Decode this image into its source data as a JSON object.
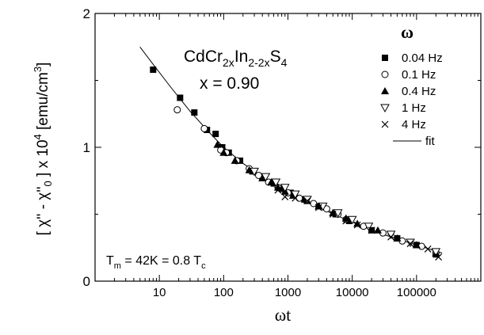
{
  "chart_data": {
    "type": "scatter",
    "title": "",
    "xlabel": "ωt",
    "ylabel": {
      "part1": "[ χ'' - χ''",
      "sub1": "0",
      "part2": " ] x 10",
      "sup1": "4",
      "part3": " [emu/cm",
      "sup2": "3",
      "part4": "]"
    },
    "x_scale": "log",
    "xlim": [
      1,
      1000000
    ],
    "ylim": [
      0,
      2
    ],
    "x_tick_labels": [
      "10",
      "100",
      "1000",
      "10000",
      "100000"
    ],
    "y_tick_labels": [
      "0",
      "1",
      "2"
    ],
    "annotations": {
      "compound": {
        "base": "CdCr",
        "sub1": "2x",
        "mid": "In",
        "sub2": "2-2x",
        "end": "S",
        "sub3": "4"
      },
      "composition": "x = 0.90",
      "tm": {
        "t": "T",
        "tsub": "m",
        "rest": " = 42K = 0.8 T",
        "csub": "c"
      }
    },
    "legend": {
      "title": "ω",
      "placement": "top-right",
      "entries": [
        {
          "label": "0.04 Hz",
          "marker": "filled-square"
        },
        {
          "label": "0.1 Hz",
          "marker": "open-circle"
        },
        {
          "label": "0.4 Hz",
          "marker": "filled-triangle-up"
        },
        {
          "label": "1 Hz",
          "marker": "open-triangle-down"
        },
        {
          "label": "4 Hz",
          "marker": "cross"
        },
        {
          "label": "fit",
          "marker": "line"
        }
      ]
    },
    "series": [
      {
        "marker": "filled-square",
        "points": [
          [
            8,
            1.58
          ],
          [
            21,
            1.37
          ],
          [
            35,
            1.26
          ],
          [
            55,
            1.13
          ],
          [
            75,
            1.1
          ],
          [
            95,
            1.0
          ],
          [
            120,
            0.96
          ],
          [
            180,
            0.9
          ],
          [
            280,
            0.82
          ],
          [
            400,
            0.77
          ],
          [
            600,
            0.73
          ],
          [
            800,
            0.69
          ],
          [
            1100,
            0.66
          ],
          [
            1800,
            0.61
          ],
          [
            3000,
            0.56
          ],
          [
            5500,
            0.5
          ],
          [
            9000,
            0.45
          ],
          [
            20000,
            0.38
          ],
          [
            50000,
            0.32
          ],
          [
            100000,
            0.27
          ],
          [
            200000,
            0.2
          ]
        ]
      },
      {
        "marker": "open-circle",
        "points": [
          [
            19,
            1.28
          ],
          [
            50,
            1.14
          ],
          [
            90,
            0.98
          ],
          [
            110,
            0.96
          ],
          [
            160,
            0.9
          ],
          [
            250,
            0.84
          ],
          [
            350,
            0.79
          ],
          [
            500,
            0.74
          ],
          [
            700,
            0.7
          ],
          [
            1000,
            0.66
          ],
          [
            1500,
            0.62
          ],
          [
            2500,
            0.58
          ],
          [
            4000,
            0.54
          ],
          [
            6000,
            0.5
          ],
          [
            8000,
            0.46
          ],
          [
            15000,
            0.41
          ],
          [
            30000,
            0.36
          ],
          [
            60000,
            0.3
          ],
          [
            120000,
            0.26
          ],
          [
            200000,
            0.21
          ]
        ]
      },
      {
        "marker": "filled-triangle-up",
        "points": [
          [
            80,
            1.02
          ],
          [
            100,
            0.96
          ],
          [
            150,
            0.9
          ],
          [
            250,
            0.83
          ],
          [
            400,
            0.77
          ],
          [
            550,
            0.74
          ],
          [
            700,
            0.7
          ],
          [
            900,
            0.67
          ],
          [
            1200,
            0.64
          ],
          [
            2000,
            0.6
          ],
          [
            3000,
            0.56
          ],
          [
            5000,
            0.51
          ],
          [
            8000,
            0.47
          ],
          [
            12000,
            0.43
          ],
          [
            25000,
            0.38
          ],
          [
            50000,
            0.32
          ],
          [
            100000,
            0.27
          ],
          [
            200000,
            0.21
          ]
        ]
      },
      {
        "marker": "open-triangle-down",
        "points": [
          [
            300,
            0.82
          ],
          [
            450,
            0.78
          ],
          [
            650,
            0.74
          ],
          [
            900,
            0.7
          ],
          [
            1300,
            0.65
          ],
          [
            2000,
            0.61
          ],
          [
            3500,
            0.56
          ],
          [
            6000,
            0.51
          ],
          [
            10000,
            0.46
          ],
          [
            18000,
            0.41
          ],
          [
            40000,
            0.35
          ],
          [
            80000,
            0.29
          ],
          [
            200000,
            0.22
          ]
        ]
      },
      {
        "marker": "cross",
        "points": [
          [
            700,
            0.68
          ],
          [
            900,
            0.63
          ],
          [
            1300,
            0.62
          ],
          [
            2000,
            0.6
          ],
          [
            3000,
            0.55
          ],
          [
            5000,
            0.5
          ],
          [
            8000,
            0.45
          ],
          [
            12000,
            0.42
          ],
          [
            20000,
            0.38
          ],
          [
            40000,
            0.33
          ],
          [
            80000,
            0.28
          ],
          [
            150000,
            0.24
          ],
          [
            220000,
            0.18
          ]
        ]
      }
    ],
    "fit": {
      "points": [
        [
          5,
          1.75
        ],
        [
          8,
          1.62
        ],
        [
          15,
          1.45
        ],
        [
          30,
          1.27
        ],
        [
          60,
          1.11
        ],
        [
          100,
          1.0
        ],
        [
          200,
          0.88
        ],
        [
          500,
          0.75
        ],
        [
          1000,
          0.67
        ],
        [
          3000,
          0.55
        ],
        [
          10000,
          0.44
        ],
        [
          30000,
          0.35
        ],
        [
          100000,
          0.27
        ],
        [
          250000,
          0.21
        ]
      ]
    }
  }
}
